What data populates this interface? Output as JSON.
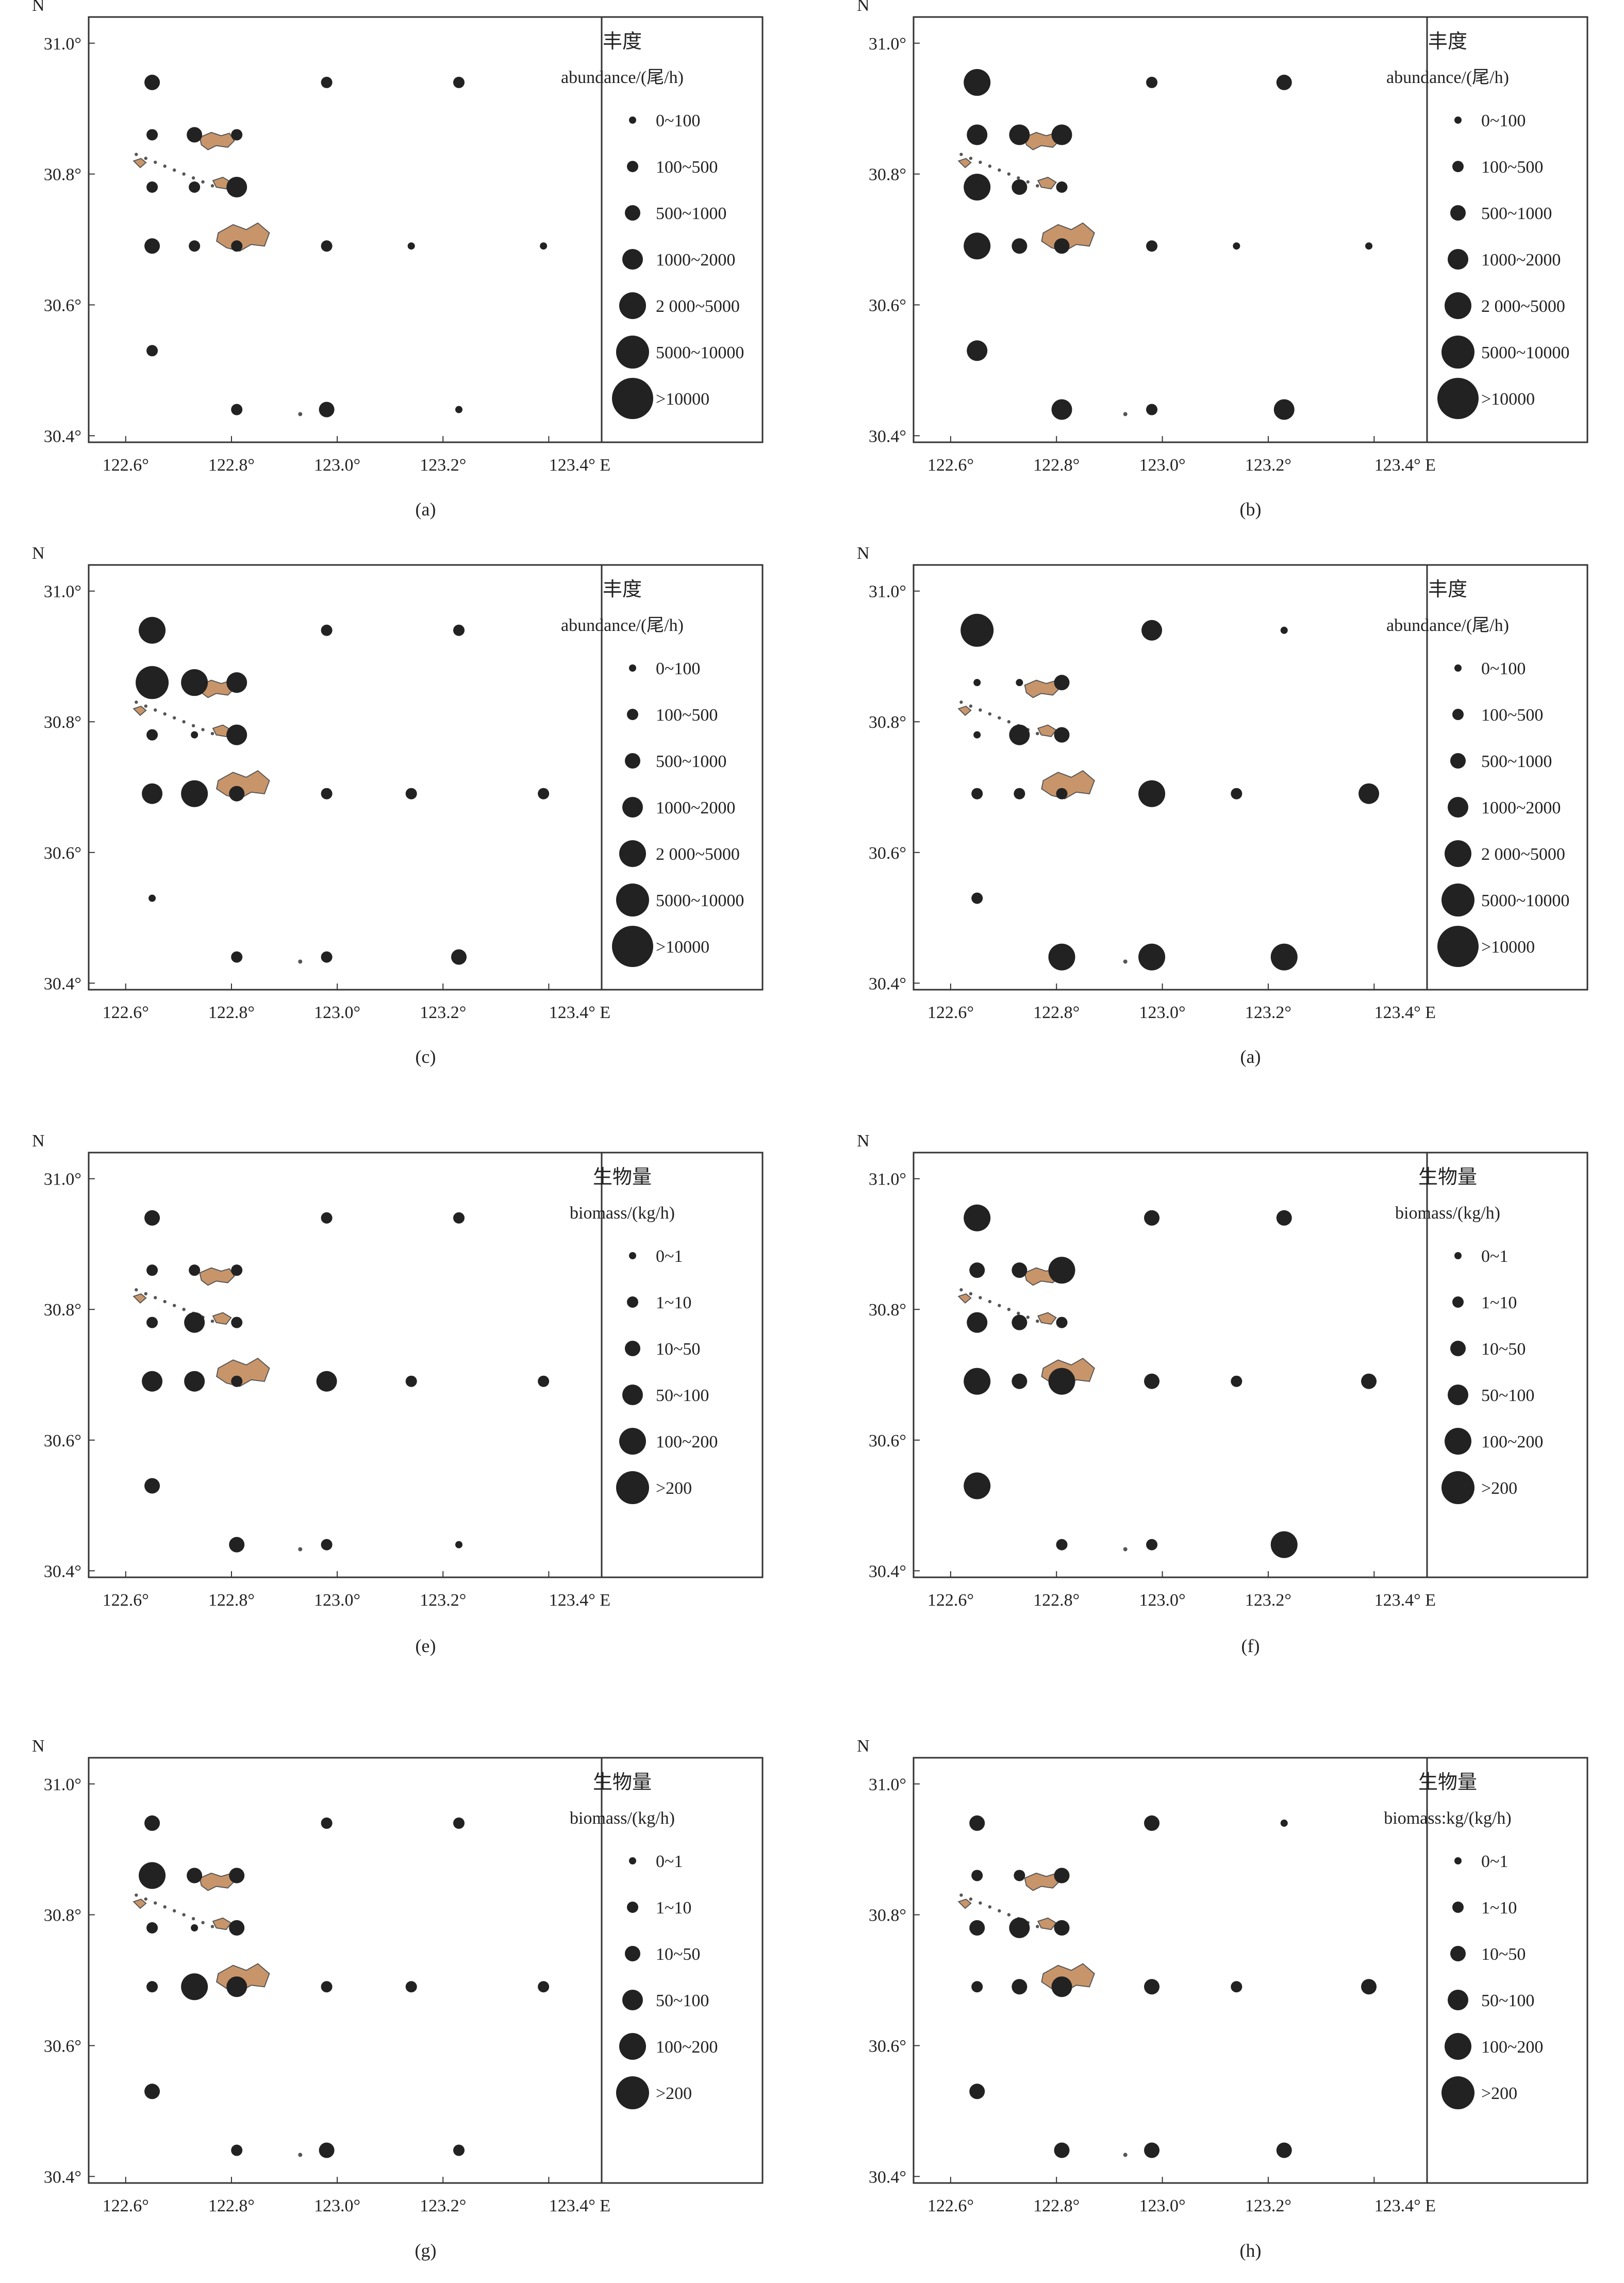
{
  "axes": {
    "lon_ticks": [
      "122.6°",
      "122.8°",
      "123.0°",
      "123.2°",
      "123.4° E"
    ],
    "lat_ticks": [
      "31.0°",
      "30.8°",
      "30.6°",
      "30.4°"
    ],
    "north": "N"
  },
  "colors": {
    "dot": "#222222",
    "island_fill": "#c8956a",
    "island_stroke": "#555555",
    "frame": "#333333"
  },
  "legends": {
    "abundance": {
      "title_cn": "丰度",
      "title_en": "abundance/(尾/h)",
      "classes": [
        "0~100",
        "100~500",
        "500~1000",
        "1000~2000",
        "2 000~5000",
        "5000~10000",
        ">10000"
      ]
    },
    "biomass": {
      "title_cn": "生物量",
      "title_en": "biomass/(kg/h)",
      "classes": [
        "0~1",
        "1~10",
        "10~50",
        "50~100",
        "100~200",
        ">200"
      ]
    }
  },
  "panels": [
    {
      "caption": "(a)",
      "kind": "abundance",
      "stations": [
        [
          122.65,
          30.94,
          2
        ],
        [
          122.98,
          30.94,
          1
        ],
        [
          123.23,
          30.94,
          1
        ],
        [
          122.65,
          30.86,
          1
        ],
        [
          122.73,
          30.86,
          2
        ],
        [
          122.81,
          30.86,
          1
        ],
        [
          122.65,
          30.78,
          1
        ],
        [
          122.73,
          30.78,
          1
        ],
        [
          122.81,
          30.78,
          3
        ],
        [
          122.65,
          30.69,
          2
        ],
        [
          122.73,
          30.69,
          1
        ],
        [
          122.81,
          30.69,
          1
        ],
        [
          122.98,
          30.69,
          1
        ],
        [
          123.14,
          30.69,
          0
        ],
        [
          123.39,
          30.69,
          0
        ],
        [
          122.65,
          30.53,
          1
        ],
        [
          122.81,
          30.44,
          1
        ],
        [
          122.98,
          30.44,
          2
        ],
        [
          123.23,
          30.44,
          0
        ]
      ]
    },
    {
      "caption": "(b)",
      "kind": "abundance",
      "stations": [
        [
          122.65,
          30.94,
          4
        ],
        [
          122.98,
          30.94,
          1
        ],
        [
          123.23,
          30.94,
          2
        ],
        [
          122.65,
          30.86,
          3
        ],
        [
          122.73,
          30.86,
          3
        ],
        [
          122.81,
          30.86,
          3
        ],
        [
          122.65,
          30.78,
          4
        ],
        [
          122.73,
          30.78,
          2
        ],
        [
          122.81,
          30.78,
          1
        ],
        [
          122.65,
          30.69,
          4
        ],
        [
          122.73,
          30.69,
          2
        ],
        [
          122.81,
          30.69,
          2
        ],
        [
          122.98,
          30.69,
          1
        ],
        [
          123.14,
          30.69,
          0
        ],
        [
          123.39,
          30.69,
          0
        ],
        [
          122.65,
          30.53,
          3
        ],
        [
          122.81,
          30.44,
          3
        ],
        [
          122.98,
          30.44,
          1
        ],
        [
          123.23,
          30.44,
          3
        ]
      ]
    },
    {
      "caption": "(c)",
      "kind": "abundance",
      "stations": [
        [
          122.65,
          30.94,
          4
        ],
        [
          122.98,
          30.94,
          1
        ],
        [
          123.23,
          30.94,
          1
        ],
        [
          122.65,
          30.86,
          5
        ],
        [
          122.73,
          30.86,
          4
        ],
        [
          122.81,
          30.86,
          3
        ],
        [
          122.65,
          30.78,
          1
        ],
        [
          122.73,
          30.78,
          0
        ],
        [
          122.81,
          30.78,
          3
        ],
        [
          122.65,
          30.69,
          3
        ],
        [
          122.73,
          30.69,
          4
        ],
        [
          122.81,
          30.69,
          2
        ],
        [
          122.98,
          30.69,
          1
        ],
        [
          123.14,
          30.69,
          1
        ],
        [
          123.39,
          30.69,
          1
        ],
        [
          122.65,
          30.53,
          0
        ],
        [
          122.81,
          30.44,
          1
        ],
        [
          122.98,
          30.44,
          1
        ],
        [
          123.23,
          30.44,
          2
        ]
      ]
    },
    {
      "caption": "(a)",
      "kind": "abundance",
      "stations": [
        [
          122.65,
          30.94,
          5
        ],
        [
          122.98,
          30.94,
          3
        ],
        [
          123.23,
          30.94,
          0
        ],
        [
          122.65,
          30.86,
          0
        ],
        [
          122.73,
          30.86,
          0
        ],
        [
          122.81,
          30.86,
          2
        ],
        [
          122.65,
          30.78,
          0
        ],
        [
          122.73,
          30.78,
          3
        ],
        [
          122.81,
          30.78,
          2
        ],
        [
          122.65,
          30.69,
          1
        ],
        [
          122.73,
          30.69,
          1
        ],
        [
          122.81,
          30.69,
          1
        ],
        [
          122.98,
          30.69,
          4
        ],
        [
          123.14,
          30.69,
          1
        ],
        [
          123.39,
          30.69,
          3
        ],
        [
          122.65,
          30.53,
          1
        ],
        [
          122.81,
          30.44,
          4
        ],
        [
          122.98,
          30.44,
          4
        ],
        [
          123.23,
          30.44,
          4
        ]
      ]
    },
    {
      "caption": "(e)",
      "kind": "biomass",
      "stations": [
        [
          122.65,
          30.94,
          2
        ],
        [
          122.98,
          30.94,
          1
        ],
        [
          123.23,
          30.94,
          1
        ],
        [
          122.65,
          30.86,
          1
        ],
        [
          122.73,
          30.86,
          1
        ],
        [
          122.81,
          30.86,
          1
        ],
        [
          122.65,
          30.78,
          1
        ],
        [
          122.73,
          30.78,
          3
        ],
        [
          122.81,
          30.78,
          1
        ],
        [
          122.65,
          30.69,
          3
        ],
        [
          122.73,
          30.69,
          3
        ],
        [
          122.81,
          30.69,
          1
        ],
        [
          122.98,
          30.69,
          3
        ],
        [
          123.14,
          30.69,
          1
        ],
        [
          123.39,
          30.69,
          1
        ],
        [
          122.65,
          30.53,
          2
        ],
        [
          122.81,
          30.44,
          2
        ],
        [
          122.98,
          30.44,
          1
        ],
        [
          123.23,
          30.44,
          0
        ]
      ]
    },
    {
      "caption": "(f)",
      "kind": "biomass",
      "stations": [
        [
          122.65,
          30.94,
          4
        ],
        [
          122.98,
          30.94,
          2
        ],
        [
          123.23,
          30.94,
          2
        ],
        [
          122.65,
          30.86,
          2
        ],
        [
          122.73,
          30.86,
          2
        ],
        [
          122.81,
          30.86,
          4
        ],
        [
          122.65,
          30.78,
          3
        ],
        [
          122.73,
          30.78,
          2
        ],
        [
          122.81,
          30.78,
          1
        ],
        [
          122.65,
          30.69,
          4
        ],
        [
          122.73,
          30.69,
          2
        ],
        [
          122.81,
          30.69,
          4
        ],
        [
          122.98,
          30.69,
          2
        ],
        [
          123.14,
          30.69,
          1
        ],
        [
          123.39,
          30.69,
          2
        ],
        [
          122.65,
          30.53,
          4
        ],
        [
          122.81,
          30.44,
          1
        ],
        [
          122.98,
          30.44,
          1
        ],
        [
          123.23,
          30.44,
          4
        ]
      ]
    },
    {
      "caption": "(g)",
      "kind": "biomass",
      "stations": [
        [
          122.65,
          30.94,
          2
        ],
        [
          122.98,
          30.94,
          1
        ],
        [
          123.23,
          30.94,
          1
        ],
        [
          122.65,
          30.86,
          4
        ],
        [
          122.73,
          30.86,
          2
        ],
        [
          122.81,
          30.86,
          2
        ],
        [
          122.65,
          30.78,
          1
        ],
        [
          122.73,
          30.78,
          0
        ],
        [
          122.81,
          30.78,
          2
        ],
        [
          122.65,
          30.69,
          1
        ],
        [
          122.73,
          30.69,
          4
        ],
        [
          122.81,
          30.69,
          3
        ],
        [
          122.98,
          30.69,
          1
        ],
        [
          123.14,
          30.69,
          1
        ],
        [
          123.39,
          30.69,
          1
        ],
        [
          122.65,
          30.53,
          2
        ],
        [
          122.81,
          30.44,
          1
        ],
        [
          122.98,
          30.44,
          2
        ],
        [
          123.23,
          30.44,
          1
        ]
      ]
    },
    {
      "caption": "(h)",
      "kind": "biomass",
      "legend_title_en": "biomass:kg/(kg/h)",
      "stations": [
        [
          122.65,
          30.94,
          2
        ],
        [
          122.98,
          30.94,
          2
        ],
        [
          123.23,
          30.94,
          0
        ],
        [
          122.65,
          30.86,
          1
        ],
        [
          122.73,
          30.86,
          1
        ],
        [
          122.81,
          30.86,
          2
        ],
        [
          122.65,
          30.78,
          2
        ],
        [
          122.73,
          30.78,
          3
        ],
        [
          122.81,
          30.78,
          2
        ],
        [
          122.65,
          30.69,
          1
        ],
        [
          122.73,
          30.69,
          2
        ],
        [
          122.81,
          30.69,
          3
        ],
        [
          122.98,
          30.69,
          2
        ],
        [
          123.14,
          30.69,
          1
        ],
        [
          123.39,
          30.69,
          2
        ],
        [
          122.65,
          30.53,
          2
        ],
        [
          122.81,
          30.44,
          2
        ],
        [
          122.98,
          30.44,
          2
        ],
        [
          123.23,
          30.44,
          2
        ]
      ]
    }
  ]
}
